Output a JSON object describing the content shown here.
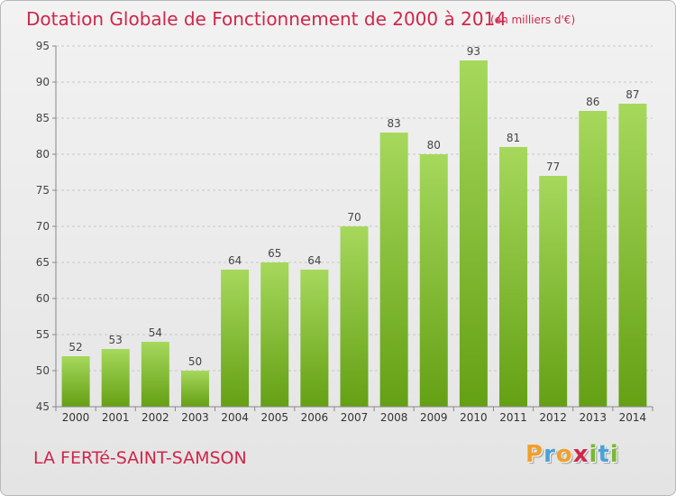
{
  "chart_data": {
    "type": "bar",
    "title": "Dotation Globale de Fonctionnement de 2000 à 2014",
    "unit": "(en milliers d'€)",
    "categories": [
      "2000",
      "2001",
      "2002",
      "2003",
      "2004",
      "2005",
      "2006",
      "2007",
      "2008",
      "2009",
      "2010",
      "2011",
      "2012",
      "2013",
      "2014"
    ],
    "values": [
      52,
      53,
      54,
      50,
      64,
      65,
      64,
      70,
      83,
      80,
      93,
      81,
      77,
      86,
      87
    ],
    "ylim": [
      45,
      95
    ],
    "yticks": [
      45,
      50,
      55,
      60,
      65,
      70,
      75,
      80,
      85,
      90,
      95
    ],
    "xlabel": "",
    "ylabel": "",
    "grid": true,
    "bar_color_top": "#a6d85c",
    "bar_color_bottom": "#64a014"
  },
  "footer": {
    "commune": "LA FERTé-SAINT-SAMSON",
    "logo_letters": [
      "P",
      "r",
      "o",
      "x",
      "i",
      "t",
      "i"
    ],
    "logo_colors": [
      "#f0a02a",
      "#4aa2d6",
      "#f0a02a",
      "#d0264a",
      "#78b832",
      "#4aa2d6",
      "#78b832"
    ]
  }
}
